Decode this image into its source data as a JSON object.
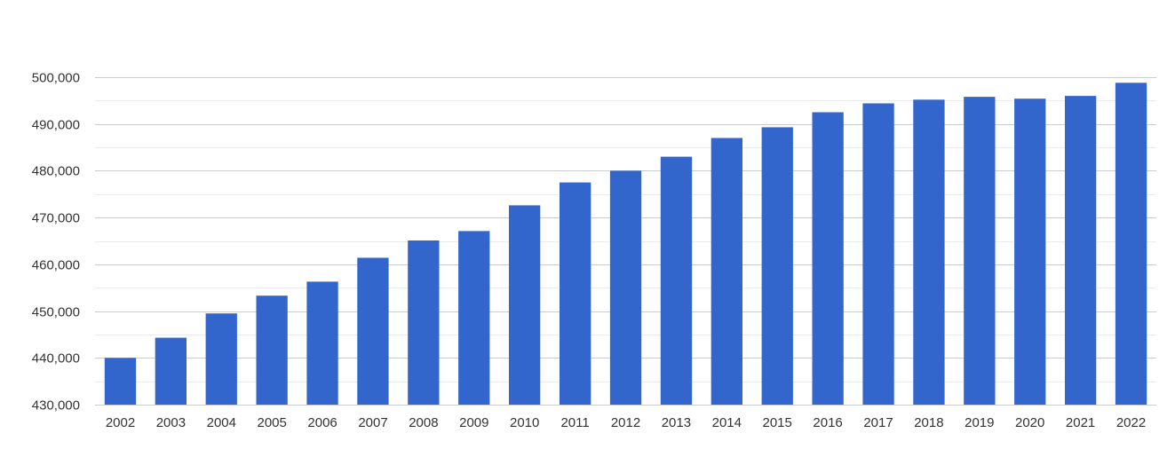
{
  "chart_data": {
    "type": "bar",
    "title": "",
    "xlabel": "",
    "ylabel": "",
    "categories": [
      "2002",
      "2003",
      "2004",
      "2005",
      "2006",
      "2007",
      "2008",
      "2009",
      "2010",
      "2011",
      "2012",
      "2013",
      "2014",
      "2015",
      "2016",
      "2017",
      "2018",
      "2019",
      "2020",
      "2021",
      "2022"
    ],
    "values": [
      440000,
      444300,
      449500,
      453300,
      456300,
      461400,
      465100,
      467100,
      472600,
      477500,
      480000,
      483000,
      487000,
      489300,
      492500,
      494400,
      495200,
      495800,
      495400,
      496000,
      498800
    ],
    "ylim": [
      430000,
      500000
    ],
    "yticks": [
      430000,
      440000,
      450000,
      460000,
      470000,
      480000,
      490000,
      500000
    ],
    "ytick_labels": [
      "430,000",
      "440,000",
      "450,000",
      "460,000",
      "470,000",
      "480,000",
      "490,000",
      "500,000"
    ],
    "grid": true,
    "legend": "none",
    "bar_color": "#3366cc"
  }
}
